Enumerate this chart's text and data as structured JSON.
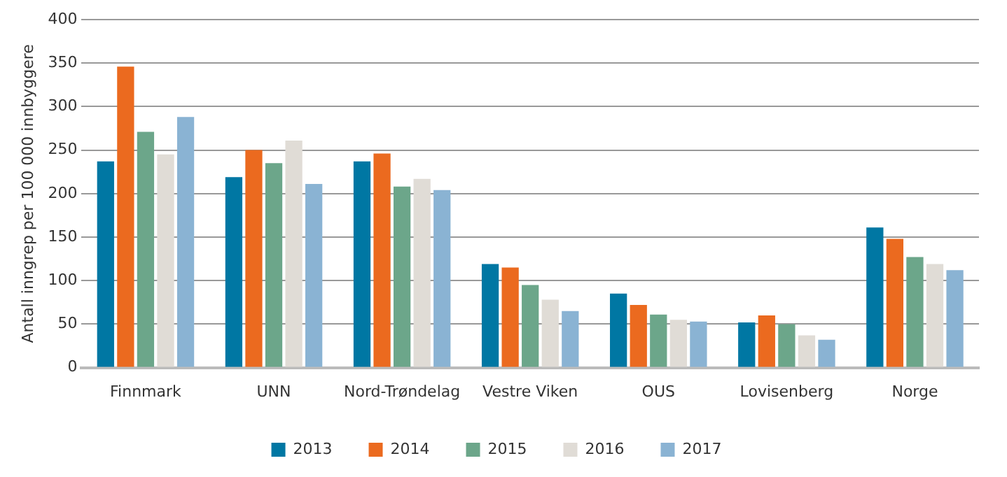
{
  "chart_data": {
    "type": "bar",
    "ylabel": "Antall inngrep per 100 000 innbyggere",
    "categories": [
      "Finnmark",
      "UNN",
      "Nord-Trøndelag",
      "Vestre Viken",
      "OUS",
      "Lovisenberg",
      "Norge"
    ],
    "series": [
      {
        "name": "2013",
        "color": "#0077a3",
        "values": [
          237,
          219,
          237,
          119,
          85,
          52,
          161
        ]
      },
      {
        "name": "2014",
        "color": "#eb6a1f",
        "values": [
          346,
          250,
          246,
          115,
          72,
          60,
          148
        ]
      },
      {
        "name": "2015",
        "color": "#6ca68a",
        "values": [
          271,
          235,
          208,
          95,
          61,
          50,
          127
        ]
      },
      {
        "name": "2016",
        "color": "#e0dcd6",
        "values": [
          245,
          261,
          217,
          78,
          55,
          37,
          119
        ]
      },
      {
        "name": "2017",
        "color": "#8ab3d3",
        "values": [
          288,
          211,
          204,
          65,
          53,
          32,
          112
        ]
      }
    ],
    "ylim": [
      0,
      400
    ],
    "yticks": [
      0,
      50,
      100,
      150,
      200,
      250,
      300,
      350,
      400
    ],
    "grid": "y",
    "legend": "bottom"
  }
}
